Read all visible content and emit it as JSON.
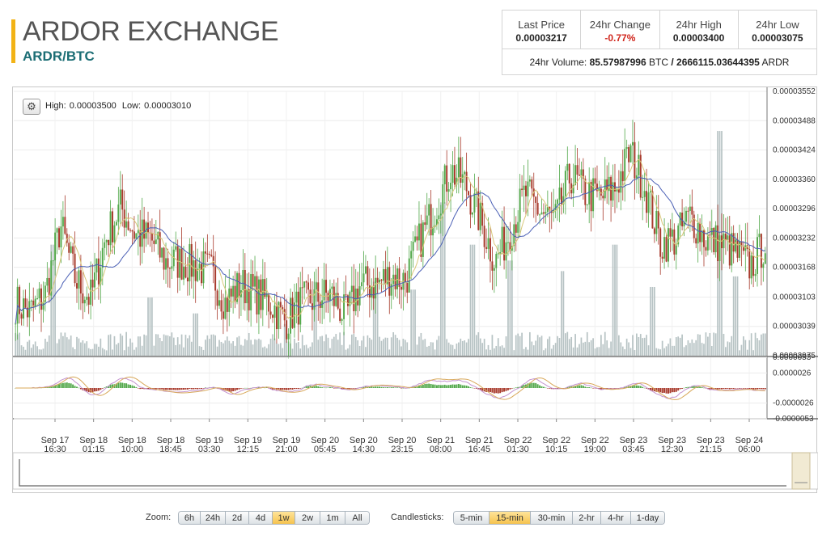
{
  "header": {
    "title": "ARDOR EXCHANGE",
    "pair": "ARDR/BTC",
    "accent_color": "#f2b316",
    "pair_color": "#1c6e75"
  },
  "stats": {
    "last_price_label": "Last Price",
    "last_price_value": "0.00003217",
    "change_label": "24hr Change",
    "change_value": "-0.77%",
    "change_color": "#d0261c",
    "high_label": "24hr High",
    "high_value": "0.00003400",
    "low_label": "24hr Low",
    "low_value": "0.00003075",
    "volume_label": "24hr Volume:",
    "volume_btc": "85.57987996",
    "volume_btc_unit": "BTC",
    "volume_sep": "/",
    "volume_ardr": "2666115.03644395",
    "volume_ardr_unit": "ARDR"
  },
  "chart_header": {
    "settings_icon": "gear-icon",
    "high_label": "High:",
    "high_value": "0.00003500",
    "low_label": "Low:",
    "low_value": "0.00003010"
  },
  "chart_data": {
    "type": "candlestick",
    "y_ticks": [
      "0.00003552",
      "0.00003488",
      "0.00003424",
      "0.00003360",
      "0.00003296",
      "0.00003232",
      "0.00003168",
      "0.00003103",
      "0.00003039",
      "0.00002975"
    ],
    "ylim": [
      2.975e-05,
      3.552e-05
    ],
    "x_ticks": [
      {
        "day": "Sep 17",
        "time": "16:30"
      },
      {
        "day": "Sep 18",
        "time": "01:15"
      },
      {
        "day": "Sep 18",
        "time": "10:00"
      },
      {
        "day": "Sep 18",
        "time": "18:45"
      },
      {
        "day": "Sep 19",
        "time": "03:30"
      },
      {
        "day": "Sep 19",
        "time": "12:15"
      },
      {
        "day": "Sep 19",
        "time": "21:00"
      },
      {
        "day": "Sep 20",
        "time": "05:45"
      },
      {
        "day": "Sep 20",
        "time": "14:30"
      },
      {
        "day": "Sep 20",
        "time": "23:15"
      },
      {
        "day": "Sep 21",
        "time": "08:00"
      },
      {
        "day": "Sep 21",
        "time": "16:45"
      },
      {
        "day": "Sep 22",
        "time": "01:30"
      },
      {
        "day": "Sep 22",
        "time": "10:15"
      },
      {
        "day": "Sep 22",
        "time": "19:00"
      },
      {
        "day": "Sep 23",
        "time": "03:45"
      },
      {
        "day": "Sep 23",
        "time": "12:30"
      },
      {
        "day": "Sep 23",
        "time": "21:15"
      },
      {
        "day": "Sep 24",
        "time": "06:00"
      }
    ],
    "close_path": [
      [
        0.0,
        3.09e-05
      ],
      [
        0.02,
        3.07e-05
      ],
      [
        0.04,
        3.11e-05
      ],
      [
        0.06,
        3.26e-05
      ],
      [
        0.08,
        3.14e-05
      ],
      [
        0.1,
        3.1e-05
      ],
      [
        0.12,
        3.23e-05
      ],
      [
        0.14,
        3.3e-05
      ],
      [
        0.16,
        3.24e-05
      ],
      [
        0.18,
        3.23e-05
      ],
      [
        0.2,
        3.18e-05
      ],
      [
        0.22,
        3.18e-05
      ],
      [
        0.24,
        3.17e-05
      ],
      [
        0.26,
        3.16e-05
      ],
      [
        0.28,
        3.09e-05
      ],
      [
        0.3,
        3.13e-05
      ],
      [
        0.32,
        3.11e-05
      ],
      [
        0.34,
        3.09e-05
      ],
      [
        0.36,
        3.05e-05
      ],
      [
        0.38,
        3.09e-05
      ],
      [
        0.4,
        3.1e-05
      ],
      [
        0.42,
        3.11e-05
      ],
      [
        0.44,
        3.06e-05
      ],
      [
        0.46,
        3.13e-05
      ],
      [
        0.48,
        3.13e-05
      ],
      [
        0.5,
        3.15e-05
      ],
      [
        0.52,
        3.14e-05
      ],
      [
        0.54,
        3.23e-05
      ],
      [
        0.56,
        3.3e-05
      ],
      [
        0.58,
        3.38e-05
      ],
      [
        0.6,
        3.35e-05
      ],
      [
        0.62,
        3.27e-05
      ],
      [
        0.64,
        3.18e-05
      ],
      [
        0.66,
        3.25e-05
      ],
      [
        0.68,
        3.33e-05
      ],
      [
        0.7,
        3.29e-05
      ],
      [
        0.72,
        3.27e-05
      ],
      [
        0.74,
        3.37e-05
      ],
      [
        0.76,
        3.33e-05
      ],
      [
        0.78,
        3.32e-05
      ],
      [
        0.8,
        3.34e-05
      ],
      [
        0.82,
        3.42e-05
      ],
      [
        0.84,
        3.34e-05
      ],
      [
        0.86,
        3.22e-05
      ],
      [
        0.88,
        3.23e-05
      ],
      [
        0.9,
        3.28e-05
      ],
      [
        0.92,
        3.23e-05
      ],
      [
        0.94,
        3.22e-05
      ],
      [
        0.96,
        3.2e-05
      ],
      [
        0.98,
        3.17e-05
      ],
      [
        1.0,
        3.22e-05
      ]
    ],
    "volume_spikes": [
      [
        0.05,
        0.42
      ],
      [
        0.18,
        0.22
      ],
      [
        0.24,
        0.16
      ],
      [
        0.36,
        0.12
      ],
      [
        0.4,
        0.28
      ],
      [
        0.48,
        0.28
      ],
      [
        0.53,
        0.25
      ],
      [
        0.57,
        0.58
      ],
      [
        0.61,
        0.42
      ],
      [
        0.66,
        0.36
      ],
      [
        0.73,
        0.32
      ],
      [
        0.8,
        0.42
      ],
      [
        0.85,
        0.26
      ],
      [
        0.94,
        0.85
      ],
      [
        0.96,
        0.3
      ]
    ],
    "macd_ticks": [
      "0.0000053",
      "0.0000026",
      "-0.0000026",
      "-0.0000053"
    ],
    "macd_lim": [
      -5.3e-06,
      5.3e-06
    ],
    "colors": {
      "up": "#52a84a",
      "down": "#a83a2c",
      "volume": "#b7c3c4",
      "fast_ma": "#d9c77a",
      "slow_ma": "#4a5fb5",
      "macd_line": "#c392cf",
      "signal_line": "#d8a85a",
      "navigator_handle": "#f1ead3"
    }
  },
  "controls": {
    "zoom_label": "Zoom:",
    "zoom_options": [
      "6h",
      "24h",
      "2d",
      "4d",
      "1w",
      "2w",
      "1m",
      "All"
    ],
    "zoom_selected": "1w",
    "candle_label": "Candlesticks:",
    "candle_options": [
      "5-min",
      "15-min",
      "30-min",
      "2-hr",
      "4-hr",
      "1-day"
    ],
    "candle_selected": "15-min"
  }
}
